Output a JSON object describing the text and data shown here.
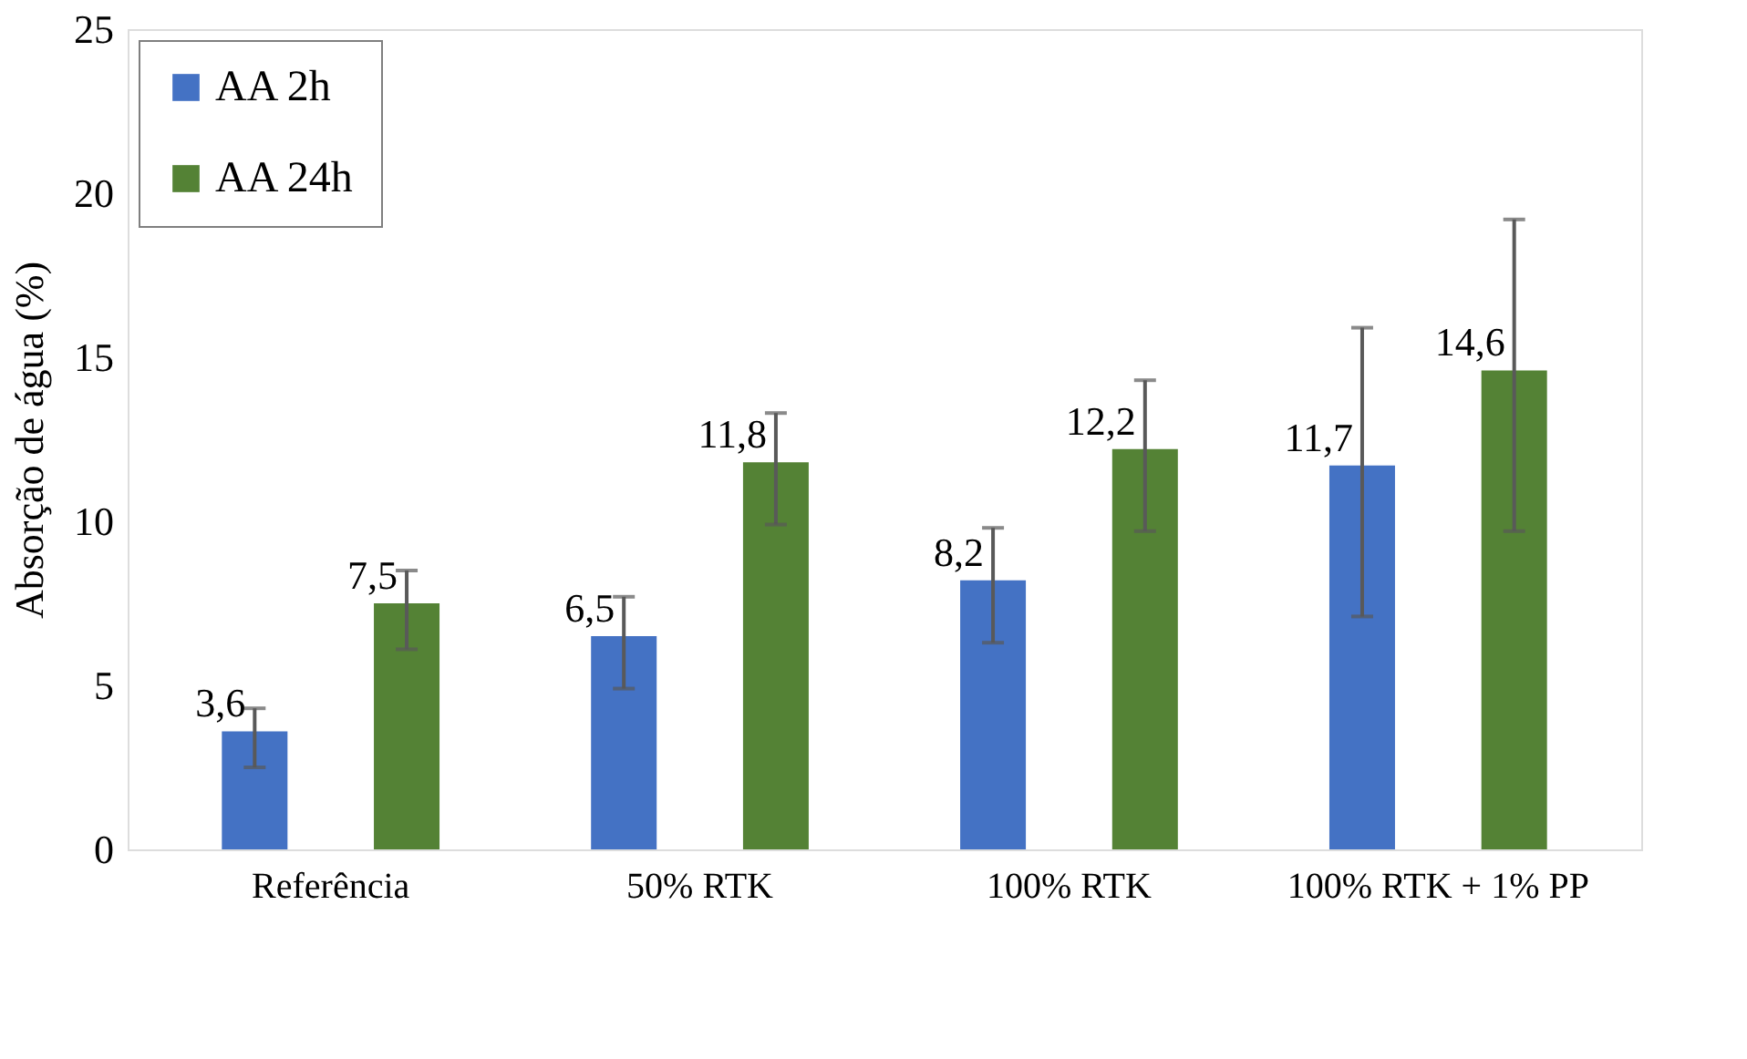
{
  "chart_data": {
    "type": "bar",
    "ylabel": "Absorção de água (%)",
    "categories": [
      "Referência",
      "50% RTK",
      "100% RTK",
      "100% RTK + 1% PP"
    ],
    "series": [
      {
        "name": "AA 2h",
        "color": "#4472c4",
        "values": [
          3.6,
          6.5,
          8.2,
          11.7
        ],
        "errors": [
          [
            2.5,
            4.3
          ],
          [
            4.9,
            7.7
          ],
          [
            6.3,
            9.8
          ],
          [
            7.1,
            15.9
          ]
        ],
        "value_labels": [
          "3,6",
          "6,5",
          "8,2",
          "11,7"
        ]
      },
      {
        "name": "AA 24h",
        "color": "#548235",
        "values": [
          7.5,
          11.8,
          12.2,
          14.6
        ],
        "errors": [
          [
            6.1,
            8.5
          ],
          [
            9.9,
            13.3
          ],
          [
            9.7,
            14.3
          ],
          [
            9.7,
            19.2
          ]
        ],
        "value_labels": [
          "7,5",
          "11,8",
          "12,2",
          "14,6"
        ]
      }
    ],
    "ylim": [
      0,
      25
    ],
    "yticks": [
      0,
      5,
      10,
      15,
      20,
      25
    ],
    "grid": false,
    "legend": "top left"
  }
}
